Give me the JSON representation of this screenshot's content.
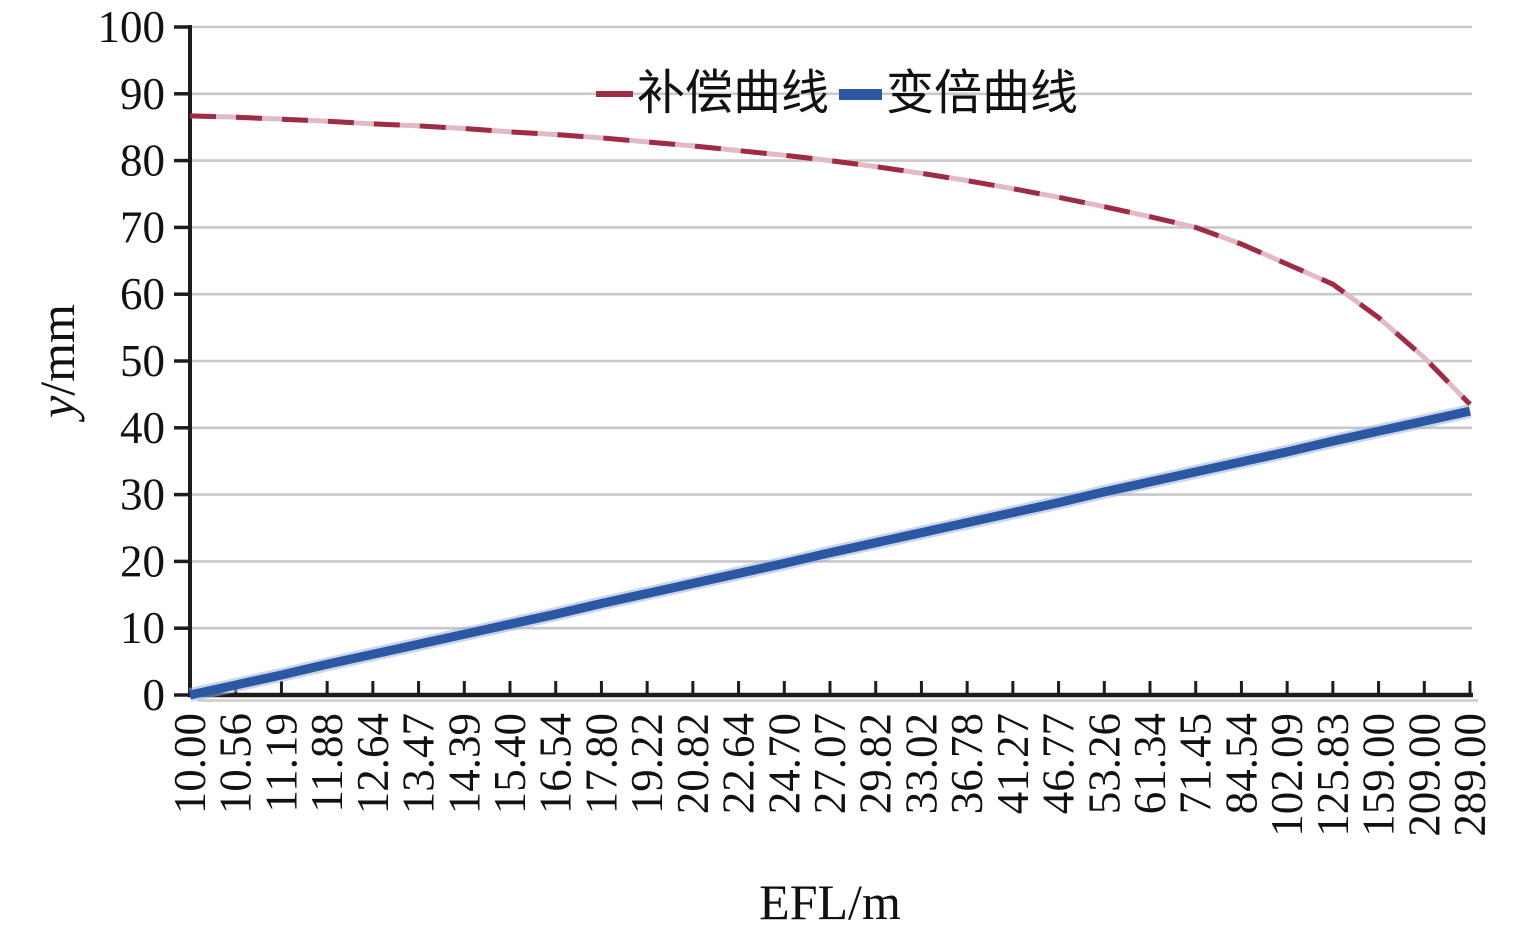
{
  "chart_data": {
    "type": "line",
    "title": "",
    "xlabel": "EFL/m",
    "ylabel": "y/mm",
    "ylabel_italic": "y",
    "ylabel_unit": "/mm",
    "ylim": [
      0,
      100
    ],
    "ytick_step": 10,
    "grid": "horizontal",
    "legend_position": "top-center",
    "background": "#ffffff",
    "axis_color": "#1c1c1c",
    "gridline_color": "#c9c9c9",
    "tick_label_color": "#111111",
    "yticks": [
      0,
      10,
      20,
      30,
      40,
      50,
      60,
      70,
      80,
      90,
      100
    ],
    "categories": [
      "10.00",
      "10.56",
      "11.19",
      "11.88",
      "12.64",
      "13.47",
      "14.39",
      "15.40",
      "16.54",
      "17.80",
      "19.22",
      "20.82",
      "22.64",
      "24.70",
      "27.07",
      "29.82",
      "33.02",
      "36.78",
      "41.27",
      "46.77",
      "53.26",
      "61.34",
      "71.45",
      "84.54",
      "102.09",
      "125.83",
      "159.00",
      "209.00",
      "289.00"
    ],
    "series": [
      {
        "name": "补偿曲线",
        "style": "dashed",
        "color": "#9e2c44",
        "color_light": "#e2bac6",
        "width": 5,
        "values": [
          86.7,
          86.5,
          86.2,
          85.9,
          85.5,
          85.2,
          84.8,
          84.3,
          83.9,
          83.4,
          82.8,
          82.2,
          81.5,
          80.8,
          80.0,
          79.1,
          78.1,
          77.0,
          75.8,
          74.5,
          73.1,
          71.6,
          70.0,
          67.5,
          64.5,
          61.5,
          56.5,
          50.5,
          43.5
        ]
      },
      {
        "name": "变倍曲线",
        "style": "solid",
        "color": "#2b57a3",
        "color_light": "#9db4d9",
        "width": 9,
        "values": [
          0.0,
          1.5,
          3.0,
          4.6,
          6.1,
          7.6,
          9.1,
          10.6,
          12.1,
          13.7,
          15.2,
          16.7,
          18.2,
          19.7,
          21.3,
          22.8,
          24.3,
          25.8,
          27.3,
          28.8,
          30.4,
          31.9,
          33.4,
          34.9,
          36.4,
          38.0,
          39.5,
          41.0,
          42.5
        ]
      }
    ]
  }
}
